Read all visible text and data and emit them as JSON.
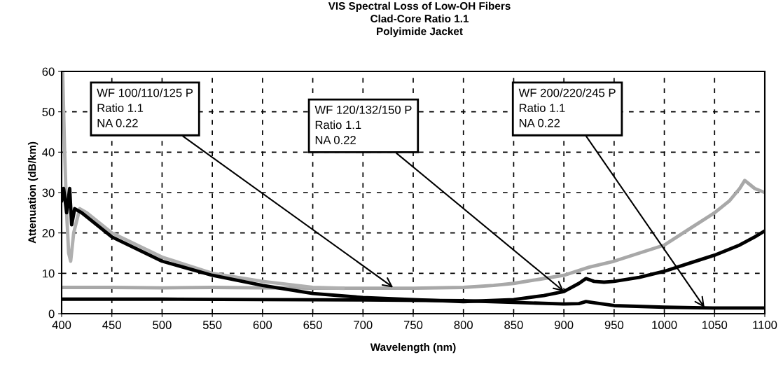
{
  "chart_data": {
    "type": "line",
    "title": "VIS Spectral Loss of Low-OH Fibers\nClad-Core Ratio 1.1\nPolyimide Jacket",
    "xlabel": "Wavelength (nm)",
    "ylabel": "Attenuation (dB/km)",
    "xlim": [
      400,
      1100
    ],
    "ylim": [
      0,
      60
    ],
    "xticks": [
      400,
      450,
      500,
      550,
      600,
      650,
      700,
      750,
      800,
      850,
      900,
      950,
      1000,
      1050,
      1100
    ],
    "yticks": [
      0,
      10,
      20,
      30,
      40,
      50,
      60
    ],
    "grid": true,
    "legend": false,
    "marker": "none",
    "line_style": "solid",
    "series": [
      {
        "color": "#a8a8a8",
        "x": [
          400,
          450,
          500,
          550,
          600,
          650,
          700,
          750,
          800,
          830,
          850,
          875,
          900,
          925,
          950,
          975,
          1000,
          1025,
          1050,
          1065,
          1075,
          1080,
          1090,
          1100
        ],
        "values": [
          6.5,
          6.5,
          6.4,
          6.5,
          6.4,
          6.3,
          6.3,
          6.3,
          6.5,
          7,
          7.5,
          8.5,
          9.5,
          11.5,
          13,
          15,
          17,
          21,
          25,
          28,
          31,
          33,
          31,
          30
        ]
      },
      {
        "color": "#b0b0b0",
        "x": [
          401,
          403,
          405,
          407,
          409,
          412,
          418,
          425,
          450,
          500,
          550,
          600,
          650,
          680
        ],
        "values": [
          60,
          40,
          25,
          15,
          13,
          20,
          26,
          25,
          20,
          14,
          10,
          8,
          6.5,
          6.3
        ]
      },
      {
        "color": "#000000",
        "x": [
          400,
          402,
          405,
          408,
          410,
          413,
          420,
          450,
          500,
          550,
          600,
          650,
          700,
          750,
          800,
          850,
          880,
          900,
          915,
          922,
          930,
          940,
          950,
          975,
          1000,
          1025,
          1050,
          1075,
          1090,
          1100
        ],
        "values": [
          28,
          31,
          25,
          31,
          22,
          26,
          25,
          19,
          13,
          9.5,
          7,
          5,
          4,
          3.5,
          3,
          3.5,
          4.5,
          5.5,
          7.5,
          8.7,
          8,
          7.8,
          8,
          9,
          10.5,
          12.5,
          14.5,
          17,
          19,
          20.5
        ]
      },
      {
        "color": "#000000",
        "x": [
          400,
          500,
          600,
          700,
          800,
          850,
          900,
          915,
          922,
          930,
          950,
          1000,
          1050,
          1100
        ],
        "values": [
          3.6,
          3.6,
          3.5,
          3.4,
          3.2,
          2.8,
          2.4,
          2.5,
          3.0,
          2.7,
          2.0,
          1.6,
          1.4,
          1.4
        ]
      }
    ],
    "annotations": [
      {
        "text": "WF 100/110/125 P\nRatio 1.1\nNA 0.22",
        "x": 730,
        "y": 6.5
      },
      {
        "text": "WF 120/132/150 P\nRatio 1.1\nNA 0.22",
        "x": 900,
        "y": 5.5
      },
      {
        "text": "WF 200/220/245 P\nRatio 1.1\nNA 0.22",
        "x": 1040,
        "y": 1.5
      }
    ]
  }
}
